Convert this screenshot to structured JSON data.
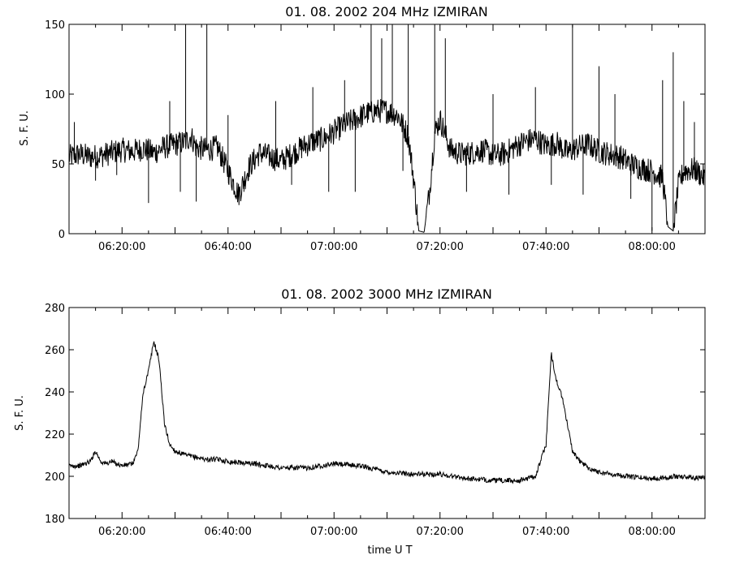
{
  "chart_data": [
    {
      "type": "line",
      "title": "01.  08.  2002    204 MHz    IZMIRAN",
      "ylabel": "S. F. U.",
      "xlabel": "",
      "xlim": [
        "06:10:00",
        "08:10:00"
      ],
      "ylim": [
        0,
        150
      ],
      "yticks": [
        0,
        50,
        100,
        150
      ],
      "xticks": [
        "06:20:00",
        "06:40:00",
        "07:00:00",
        "07:20:00",
        "07:40:00",
        "08:00:00"
      ],
      "grid": false,
      "series": [
        {
          "x_minutes_from_0610": [
            0,
            2,
            4,
            6,
            8,
            10,
            12,
            14,
            16,
            18,
            20,
            22,
            23,
            24,
            26,
            28,
            30,
            32,
            34,
            36,
            38,
            40,
            42,
            44,
            46,
            48,
            50,
            52,
            54,
            56,
            58,
            60,
            62,
            64,
            65,
            66,
            67,
            68,
            69,
            70,
            72,
            74,
            76,
            78,
            80,
            82,
            84,
            86,
            88,
            90,
            92,
            94,
            96,
            98,
            100,
            102,
            104,
            106,
            108,
            110,
            112,
            113,
            114,
            115,
            116,
            118,
            120
          ],
          "values": [
            55,
            57,
            55,
            56,
            58,
            60,
            59,
            61,
            58,
            62,
            64,
            66,
            70,
            62,
            60,
            62,
            45,
            28,
            48,
            58,
            55,
            52,
            57,
            62,
            66,
            68,
            73,
            78,
            82,
            86,
            88,
            88,
            85,
            70,
            40,
            2,
            1,
            30,
            72,
            82,
            60,
            57,
            58,
            60,
            56,
            57,
            62,
            66,
            68,
            63,
            65,
            58,
            62,
            64,
            59,
            57,
            55,
            50,
            47,
            45,
            40,
            5,
            2,
            35,
            45,
            46,
            40
          ]
        }
      ],
      "spikes": [
        {
          "t": 1,
          "v": 80
        },
        {
          "t": 5,
          "v": 38
        },
        {
          "t": 9,
          "v": 42
        },
        {
          "t": 15,
          "v": 22
        },
        {
          "t": 19,
          "v": 95
        },
        {
          "t": 21,
          "v": 30
        },
        {
          "t": 22,
          "v": 150
        },
        {
          "t": 24,
          "v": 23
        },
        {
          "t": 26,
          "v": 150
        },
        {
          "t": 30,
          "v": 85
        },
        {
          "t": 33,
          "v": 30
        },
        {
          "t": 39,
          "v": 95
        },
        {
          "t": 42,
          "v": 35
        },
        {
          "t": 46,
          "v": 105
        },
        {
          "t": 49,
          "v": 30
        },
        {
          "t": 52,
          "v": 110
        },
        {
          "t": 54,
          "v": 30
        },
        {
          "t": 57,
          "v": 150
        },
        {
          "t": 59,
          "v": 140
        },
        {
          "t": 61,
          "v": 150
        },
        {
          "t": 63,
          "v": 45
        },
        {
          "t": 64,
          "v": 150
        },
        {
          "t": 69,
          "v": 150
        },
        {
          "t": 71,
          "v": 140
        },
        {
          "t": 75,
          "v": 30
        },
        {
          "t": 80,
          "v": 100
        },
        {
          "t": 83,
          "v": 28
        },
        {
          "t": 88,
          "v": 105
        },
        {
          "t": 91,
          "v": 35
        },
        {
          "t": 95,
          "v": 150
        },
        {
          "t": 97,
          "v": 28
        },
        {
          "t": 100,
          "v": 120
        },
        {
          "t": 103,
          "v": 100
        },
        {
          "t": 106,
          "v": 25
        },
        {
          "t": 110,
          "v": 2
        },
        {
          "t": 112,
          "v": 110
        },
        {
          "t": 114,
          "v": 130
        },
        {
          "t": 116,
          "v": 95
        },
        {
          "t": 118,
          "v": 80
        }
      ]
    },
    {
      "type": "line",
      "title": "01.  08.  2002    3000 MHz    IZMIRAN",
      "ylabel": "S. F. U.",
      "xlabel": "time   U T",
      "xlim": [
        "06:10:00",
        "08:10:00"
      ],
      "ylim": [
        180,
        280
      ],
      "yticks": [
        180,
        200,
        220,
        240,
        260,
        280
      ],
      "xticks": [
        "06:20:00",
        "06:40:00",
        "07:00:00",
        "07:20:00",
        "07:40:00",
        "08:00:00"
      ],
      "grid": false,
      "series": [
        {
          "x_minutes_from_0610": [
            0,
            2,
            4,
            5,
            6,
            7,
            8,
            10,
            12,
            13,
            14,
            15,
            16,
            17,
            18,
            19,
            20,
            22,
            24,
            26,
            28,
            30,
            35,
            40,
            45,
            50,
            55,
            60,
            65,
            70,
            75,
            80,
            85,
            88,
            90,
            91,
            92,
            93,
            94,
            95,
            96,
            98,
            100,
            105,
            110,
            115,
            120
          ],
          "values": [
            205,
            205,
            207,
            212,
            207,
            206,
            207,
            205,
            206,
            212,
            240,
            250,
            264,
            255,
            225,
            215,
            212,
            210,
            209,
            208,
            208,
            207,
            206,
            204,
            204,
            206,
            205,
            202,
            201,
            201,
            199,
            198,
            198,
            200,
            215,
            258,
            245,
            238,
            225,
            212,
            208,
            204,
            202,
            200,
            199,
            200,
            199
          ]
        }
      ]
    }
  ]
}
